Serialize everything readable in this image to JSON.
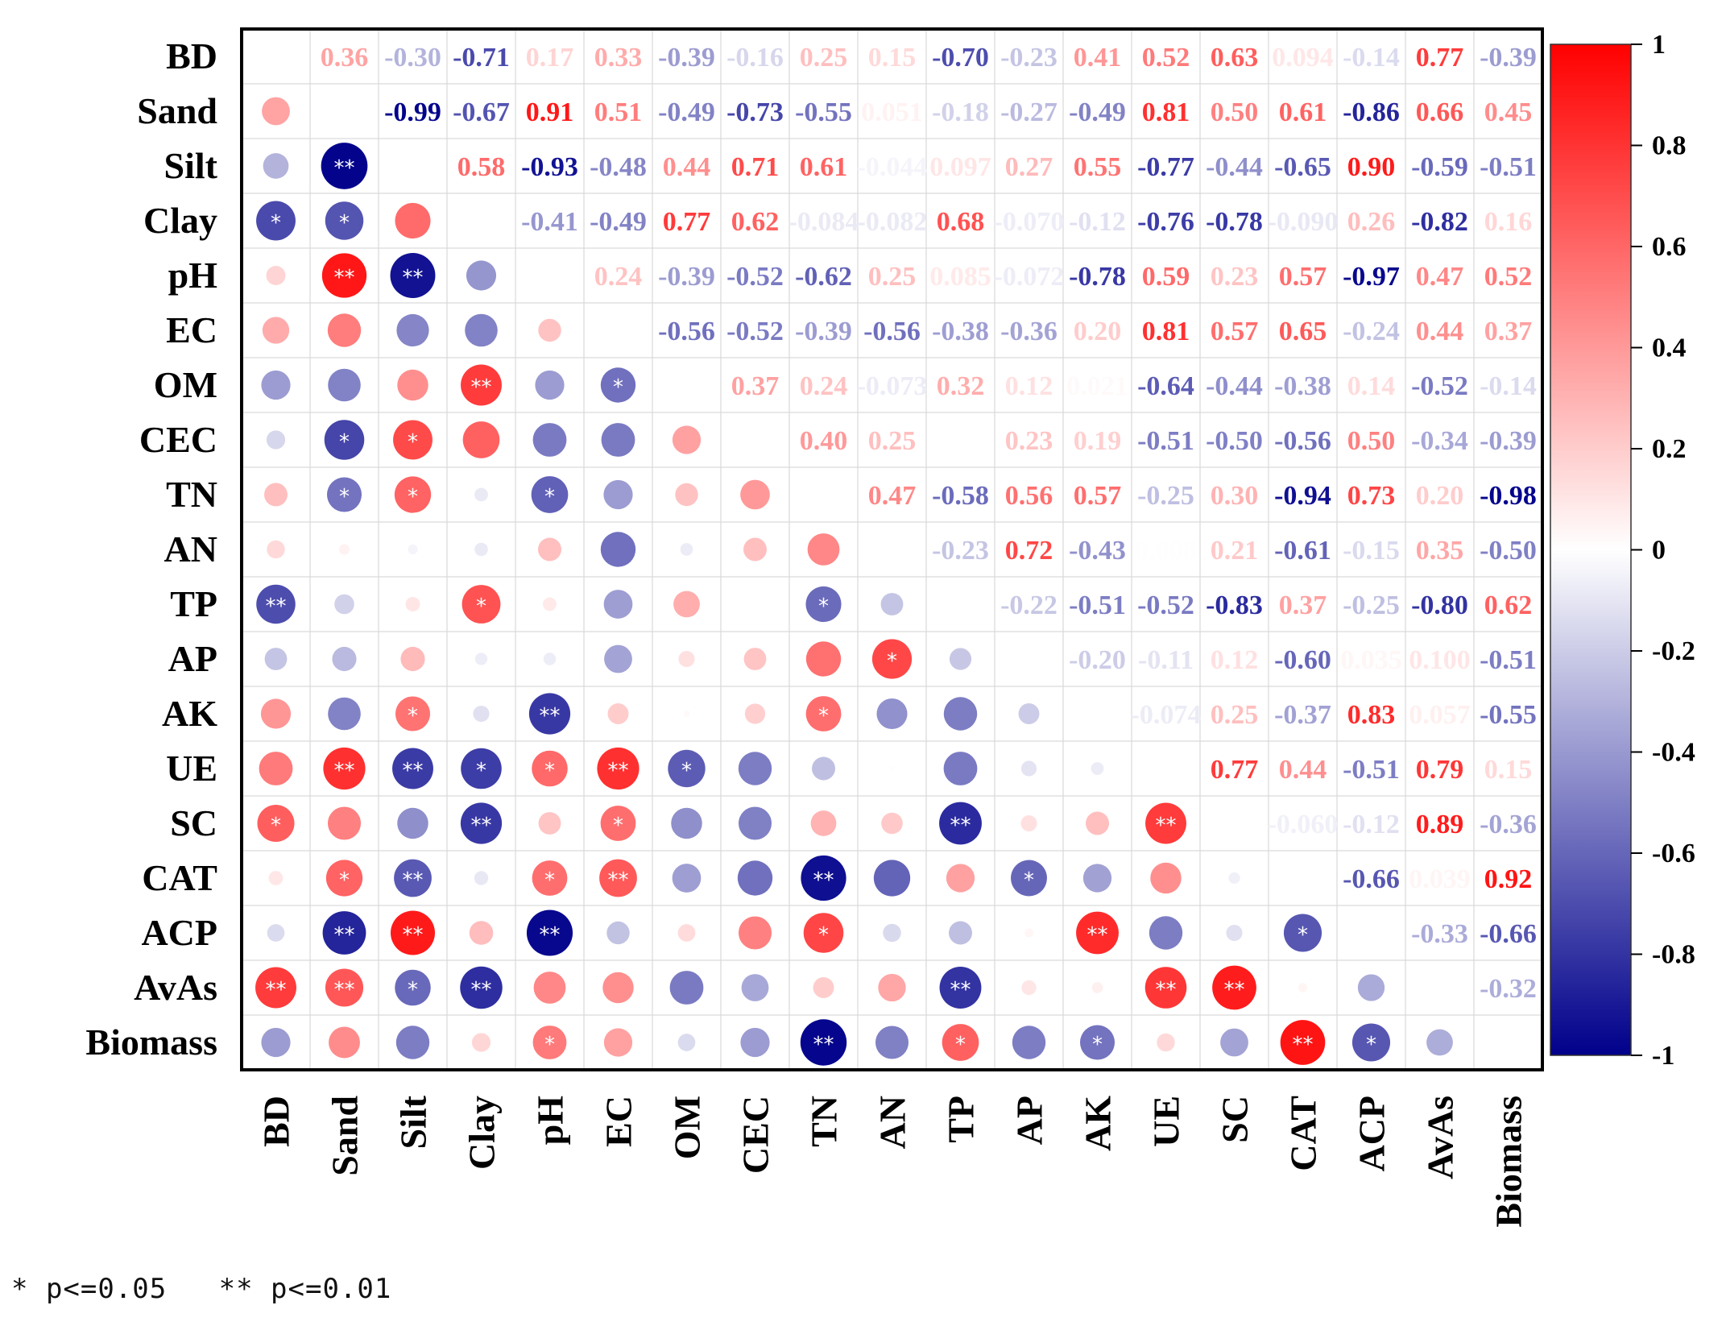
{
  "chart_data": {
    "type": "heatmap",
    "subtype": "correlation-matrix",
    "variables": [
      "BD",
      "Sand",
      "Silt",
      "Clay",
      "pH",
      "EC",
      "OM",
      "CEC",
      "TN",
      "AN",
      "TP",
      "AP",
      "AK",
      "UE",
      "SC",
      "CAT",
      "ACP",
      "AvAs",
      "Biomass"
    ],
    "upper_values": [
      [
        "",
        "0.36",
        "-0.30",
        "-0.71",
        "0.17",
        "0.33",
        "-0.39",
        "-0.16",
        "0.25",
        "0.15",
        "-0.70",
        "-0.23",
        "0.41",
        "0.52",
        "0.63",
        "0.094",
        "-0.14",
        "0.77",
        "-0.39"
      ],
      [
        "",
        "",
        "-0.99",
        "-0.67",
        "0.91",
        "0.51",
        "-0.49",
        "-0.73",
        "-0.55",
        "0.051",
        "-0.18",
        "-0.27",
        "-0.49",
        "0.81",
        "0.50",
        "0.61",
        "-0.86",
        "0.66",
        "0.45"
      ],
      [
        "",
        "",
        "",
        "0.58",
        "-0.93",
        "-0.48",
        "0.44",
        "0.71",
        "0.61",
        "-0.044",
        "0.097",
        "0.27",
        "0.55",
        "-0.77",
        "-0.44",
        "-0.65",
        "0.90",
        "-0.59",
        "-0.51"
      ],
      [
        "",
        "",
        "",
        "",
        "-0.41",
        "-0.49",
        "0.77",
        "0.62",
        "-0.084",
        "-0.082",
        "0.68",
        "-0.070",
        "-0.12",
        "-0.76",
        "-0.78",
        "-0.090",
        "0.26",
        "-0.82",
        "0.16"
      ],
      [
        "",
        "",
        "",
        "",
        "",
        "0.24",
        "-0.39",
        "-0.52",
        "-0.62",
        "0.25",
        "0.085",
        "-0.072",
        "-0.78",
        "0.59",
        "0.23",
        "0.57",
        "-0.97",
        "0.47",
        "0.52"
      ],
      [
        "",
        "",
        "",
        "",
        "",
        "",
        "-0.56",
        "-0.52",
        "-0.39",
        "-0.56",
        "-0.38",
        "-0.36",
        "0.20",
        "0.81",
        "0.57",
        "0.65",
        "-0.24",
        "0.44",
        "0.37"
      ],
      [
        "",
        "",
        "",
        "",
        "",
        "",
        "",
        "0.37",
        "0.24",
        "-0.073",
        "0.32",
        "0.12",
        "0.021",
        "-0.64",
        "-0.44",
        "-0.38",
        "0.14",
        "-0.52",
        "-0.14"
      ],
      [
        "",
        "",
        "",
        "",
        "",
        "",
        "",
        "",
        "0.40",
        "0.25",
        "",
        "0.23",
        "0.19",
        "-0.51",
        "-0.50",
        "-0.56",
        "0.50",
        "-0.34",
        "-0.39"
      ],
      [
        "",
        "",
        "",
        "",
        "",
        "",
        "",
        "",
        "",
        "0.47",
        "-0.58",
        "0.56",
        "0.57",
        "-0.25",
        "0.30",
        "-0.94",
        "0.73",
        "0.20",
        "-0.98"
      ],
      [
        "",
        "",
        "",
        "",
        "",
        "",
        "",
        "",
        "",
        "",
        "-0.23",
        "0.72",
        "-0.43",
        "0.008",
        "0.21",
        "-0.61",
        "-0.15",
        "0.35",
        "-0.50"
      ],
      [
        "",
        "",
        "",
        "",
        "",
        "",
        "",
        "",
        "",
        "",
        "",
        "-0.22",
        "-0.51",
        "-0.52",
        "-0.83",
        "0.37",
        "-0.25",
        "-0.80",
        "0.62"
      ],
      [
        "",
        "",
        "",
        "",
        "",
        "",
        "",
        "",
        "",
        "",
        "",
        "",
        "-0.20",
        "-0.11",
        "0.12",
        "-0.60",
        "0.035",
        "0.100",
        "-0.51"
      ],
      [
        "",
        "",
        "",
        "",
        "",
        "",
        "",
        "",
        "",
        "",
        "",
        "",
        "",
        "-0.074",
        "0.25",
        "-0.37",
        "0.83",
        "0.057",
        "-0.55"
      ],
      [
        "",
        "",
        "",
        "",
        "",
        "",
        "",
        "",
        "",
        "",
        "",
        "",
        "",
        "",
        "0.77",
        "0.44",
        "-0.51",
        "0.79",
        "0.15"
      ],
      [
        "",
        "",
        "",
        "",
        "",
        "",
        "",
        "",
        "",
        "",
        "",
        "",
        "",
        "",
        "",
        "-0.060",
        "-0.12",
        "0.89",
        "-0.36"
      ],
      [
        "",
        "",
        "",
        "",
        "",
        "",
        "",
        "",
        "",
        "",
        "",
        "",
        "",
        "",
        "",
        "",
        "-0.66",
        "0.039",
        "0.92"
      ],
      [
        "",
        "",
        "",
        "",
        "",
        "",
        "",
        "",
        "",
        "",
        "",
        "",
        "",
        "",
        "",
        "",
        "",
        "-0.33",
        "-0.66"
      ],
      [
        "",
        "",
        "",
        "",
        "",
        "",
        "",
        "",
        "",
        "",
        "",
        "",
        "",
        "",
        "",
        "",
        "",
        "",
        "-0.32"
      ],
      [
        "",
        "",
        "",
        "",
        "",
        "",
        "",
        "",
        "",
        "",
        "",
        "",
        "",
        "",
        "",
        "",
        "",
        "",
        ""
      ]
    ],
    "lower_values": [
      [],
      [
        0.36
      ],
      [
        -0.3,
        -0.99
      ],
      [
        -0.71,
        -0.67,
        0.58
      ],
      [
        0.17,
        0.91,
        -0.93,
        -0.41
      ],
      [
        0.33,
        0.51,
        -0.48,
        -0.49,
        0.24
      ],
      [
        -0.39,
        -0.49,
        0.44,
        0.77,
        -0.39,
        -0.56
      ],
      [
        -0.16,
        -0.73,
        0.71,
        0.62,
        -0.52,
        -0.52,
        0.37
      ],
      [
        0.25,
        -0.55,
        0.61,
        -0.084,
        -0.62,
        -0.39,
        0.24,
        0.4
      ],
      [
        0.15,
        0.051,
        -0.044,
        -0.082,
        0.25,
        -0.56,
        -0.073,
        0.25,
        0.47
      ],
      [
        -0.7,
        -0.18,
        0.097,
        0.68,
        0.085,
        -0.38,
        0.32,
        0.0,
        -0.58,
        -0.23
      ],
      [
        -0.23,
        -0.27,
        0.27,
        -0.07,
        -0.072,
        -0.36,
        0.12,
        0.23,
        0.56,
        0.72,
        -0.22
      ],
      [
        0.41,
        -0.49,
        0.55,
        -0.12,
        -0.78,
        0.2,
        0.021,
        0.19,
        0.57,
        -0.43,
        -0.51,
        -0.2
      ],
      [
        0.52,
        0.81,
        -0.77,
        -0.76,
        0.59,
        0.81,
        -0.64,
        -0.51,
        -0.25,
        0.008,
        -0.52,
        -0.11,
        -0.074
      ],
      [
        0.63,
        0.5,
        -0.44,
        -0.78,
        0.23,
        0.57,
        -0.44,
        -0.5,
        0.3,
        0.21,
        -0.83,
        0.12,
        0.25,
        0.77
      ],
      [
        0.094,
        0.61,
        -0.65,
        -0.09,
        0.57,
        0.65,
        -0.38,
        -0.56,
        -0.94,
        -0.61,
        0.37,
        -0.6,
        -0.37,
        0.44,
        -0.06
      ],
      [
        -0.14,
        -0.86,
        0.9,
        0.26,
        -0.97,
        -0.24,
        0.14,
        0.5,
        0.73,
        -0.15,
        -0.25,
        0.035,
        0.83,
        -0.51,
        -0.12,
        -0.66
      ],
      [
        0.77,
        0.66,
        -0.59,
        -0.82,
        0.47,
        0.44,
        -0.52,
        -0.34,
        0.2,
        0.35,
        -0.8,
        0.1,
        0.057,
        0.79,
        0.89,
        0.039,
        -0.33
      ],
      [
        -0.39,
        0.45,
        -0.51,
        0.16,
        0.52,
        0.37,
        -0.14,
        -0.39,
        -0.98,
        -0.5,
        0.62,
        -0.51,
        -0.55,
        0.15,
        -0.36,
        0.92,
        -0.66,
        -0.32
      ]
    ],
    "significance_lower": [
      [],
      [
        ""
      ],
      [
        "",
        "**"
      ],
      [
        "*",
        "*",
        ""
      ],
      [
        "",
        "**",
        "**",
        ""
      ],
      [
        "",
        "",
        "",
        "",
        ""
      ],
      [
        "",
        "",
        "",
        "**",
        "",
        "*"
      ],
      [
        "",
        "*",
        "*",
        "",
        "",
        "",
        ""
      ],
      [
        "",
        "*",
        "*",
        "",
        "*",
        "",
        "",
        ""
      ],
      [
        "",
        "",
        "",
        "",
        "",
        "",
        "",
        "",
        ""
      ],
      [
        "**",
        "",
        "",
        "*",
        "",
        "",
        "",
        "",
        "*",
        ""
      ],
      [
        "",
        "",
        "",
        "",
        "",
        "",
        "",
        "",
        "",
        "*",
        ""
      ],
      [
        "",
        "",
        "*",
        "",
        "**",
        "",
        "",
        "",
        "*",
        "",
        "",
        ""
      ],
      [
        "",
        "**",
        "**",
        "*",
        "*",
        "**",
        "*",
        "",
        "",
        "",
        "",
        "",
        ""
      ],
      [
        "*",
        "",
        "",
        "**",
        "",
        "*",
        "",
        "",
        "",
        "",
        "**",
        "",
        "",
        "**"
      ],
      [
        "",
        "*",
        "**",
        "",
        "*",
        "**",
        "",
        "",
        "**",
        "",
        "",
        "*",
        "",
        "",
        ""
      ],
      [
        "",
        "**",
        "**",
        "",
        "**",
        "",
        "",
        "",
        "*",
        "",
        "",
        "",
        "**",
        "",
        "",
        "*"
      ],
      [
        "**",
        "**",
        "*",
        "**",
        "",
        "",
        "",
        "",
        "",
        "",
        "**",
        "",
        "",
        "**",
        "**",
        "",
        ""
      ],
      [
        "",
        "",
        "",
        "",
        "*",
        "",
        "",
        "",
        "**",
        "",
        "*",
        "",
        "*",
        "",
        "",
        "**",
        "*",
        ""
      ]
    ],
    "colorbar": {
      "range": [
        -1,
        1
      ],
      "ticks": [
        "1",
        "0.8",
        "0.6",
        "0.4",
        "0.2",
        "0",
        "-0.2",
        "-0.4",
        "-0.6",
        "-0.8",
        "-1"
      ],
      "colors": {
        "negative": "#00008b",
        "zero": "#ffffff",
        "positive": "#ff0000"
      }
    },
    "legend_note": "* p<=0.05   ** p<=0.01"
  }
}
